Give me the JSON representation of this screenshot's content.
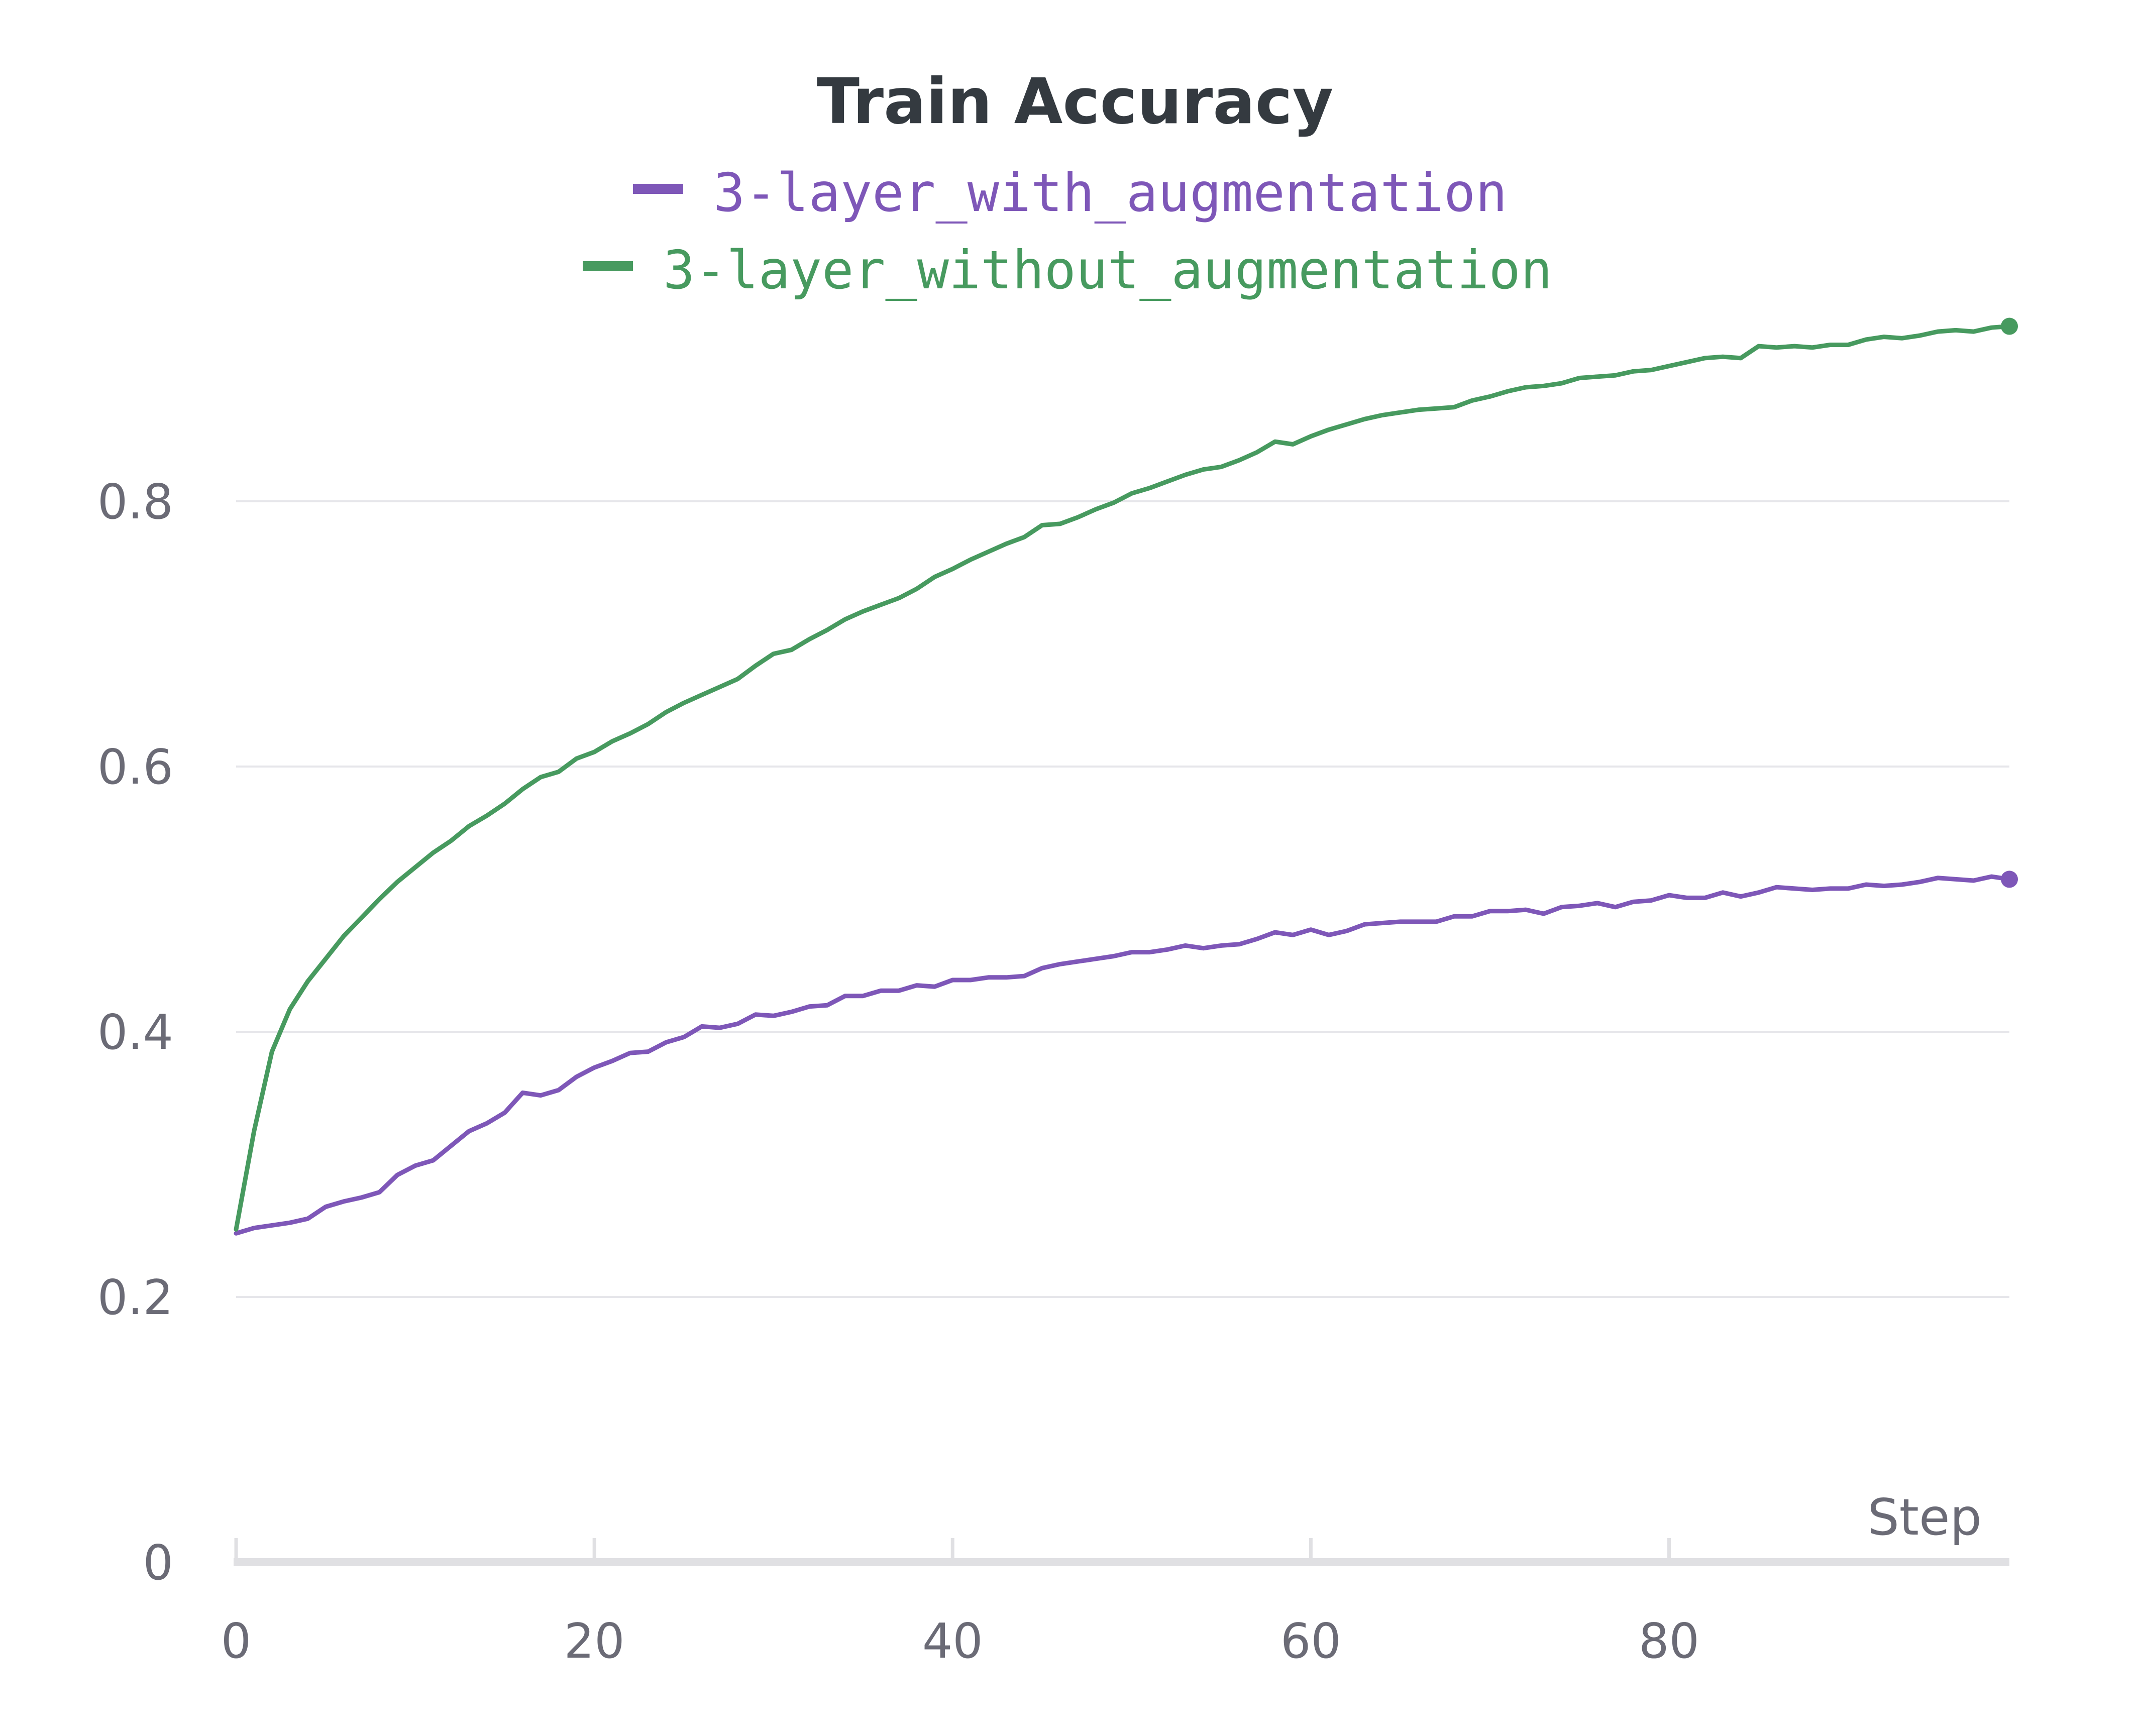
{
  "chart_data": {
    "type": "line",
    "title": "Train Accuracy",
    "xlabel": "Step",
    "ylabel": "",
    "xlim": [
      0,
      99
    ],
    "ylim": [
      0,
      0.95
    ],
    "grid": true,
    "legend_position": "top",
    "x_ticks": [
      "0",
      "20",
      "40",
      "60",
      "80"
    ],
    "x_tick_values": [
      0,
      20,
      40,
      60,
      80
    ],
    "y_ticks": [
      "0",
      "0.2",
      "0.4",
      "0.6",
      "0.8"
    ],
    "y_tick_values": [
      0,
      0.2,
      0.4,
      0.6,
      0.8
    ],
    "x": [
      0,
      1,
      2,
      3,
      4,
      5,
      6,
      7,
      8,
      9,
      10,
      11,
      12,
      13,
      14,
      15,
      16,
      17,
      18,
      19,
      20,
      21,
      22,
      23,
      24,
      25,
      26,
      27,
      28,
      29,
      30,
      31,
      32,
      33,
      34,
      35,
      36,
      37,
      38,
      39,
      40,
      41,
      42,
      43,
      44,
      45,
      46,
      47,
      48,
      49,
      50,
      51,
      52,
      53,
      54,
      55,
      56,
      57,
      58,
      59,
      60,
      61,
      62,
      63,
      64,
      65,
      66,
      67,
      68,
      69,
      70,
      71,
      72,
      73,
      74,
      75,
      76,
      77,
      78,
      79,
      80,
      81,
      82,
      83,
      84,
      85,
      86,
      87,
      88,
      89,
      90,
      91,
      92,
      93,
      94,
      95,
      96,
      97,
      98,
      99
    ],
    "series": [
      {
        "name": "3-layer_with_augmentation",
        "color": "#7e57b8",
        "values": [
          0.248,
          0.252,
          0.254,
          0.256,
          0.259,
          0.268,
          0.272,
          0.275,
          0.279,
          0.292,
          0.299,
          0.303,
          0.314,
          0.325,
          0.331,
          0.339,
          0.354,
          0.352,
          0.356,
          0.366,
          0.373,
          0.378,
          0.384,
          0.385,
          0.392,
          0.396,
          0.404,
          0.403,
          0.406,
          0.413,
          0.412,
          0.415,
          0.419,
          0.42,
          0.427,
          0.427,
          0.431,
          0.431,
          0.435,
          0.434,
          0.439,
          0.439,
          0.441,
          0.441,
          0.442,
          0.448,
          0.451,
          0.453,
          0.455,
          0.457,
          0.46,
          0.46,
          0.462,
          0.465,
          0.463,
          0.465,
          0.466,
          0.47,
          0.475,
          0.473,
          0.477,
          0.473,
          0.476,
          0.481,
          0.482,
          0.483,
          0.483,
          0.483,
          0.487,
          0.487,
          0.491,
          0.491,
          0.492,
          0.489,
          0.494,
          0.495,
          0.497,
          0.494,
          0.498,
          0.499,
          0.503,
          0.501,
          0.501,
          0.505,
          0.502,
          0.505,
          0.509,
          0.508,
          0.507,
          0.508,
          0.508,
          0.511,
          0.51,
          0.511,
          0.513,
          0.516,
          0.515,
          0.514,
          0.517,
          0.515
        ]
      },
      {
        "name": "3-layer_without_augmentation",
        "color": "#479a5f",
        "values": [
          0.251,
          0.325,
          0.385,
          0.417,
          0.438,
          0.455,
          0.472,
          0.486,
          0.5,
          0.513,
          0.524,
          0.535,
          0.544,
          0.555,
          0.563,
          0.572,
          0.583,
          0.592,
          0.596,
          0.606,
          0.611,
          0.619,
          0.625,
          0.632,
          0.641,
          0.648,
          0.654,
          0.66,
          0.666,
          0.676,
          0.685,
          0.688,
          0.696,
          0.703,
          0.711,
          0.717,
          0.722,
          0.727,
          0.734,
          0.743,
          0.749,
          0.756,
          0.762,
          0.768,
          0.773,
          0.782,
          0.783,
          0.788,
          0.794,
          0.799,
          0.806,
          0.81,
          0.815,
          0.82,
          0.824,
          0.826,
          0.831,
          0.837,
          0.845,
          0.843,
          0.849,
          0.854,
          0.858,
          0.862,
          0.865,
          0.867,
          0.869,
          0.87,
          0.871,
          0.876,
          0.879,
          0.883,
          0.886,
          0.887,
          0.889,
          0.893,
          0.894,
          0.895,
          0.898,
          0.899,
          0.902,
          0.905,
          0.908,
          0.909,
          0.908,
          0.917,
          0.916,
          0.917,
          0.916,
          0.918,
          0.918,
          0.922,
          0.924,
          0.923,
          0.925,
          0.928,
          0.929,
          0.928,
          0.931,
          0.932
        ]
      }
    ]
  }
}
